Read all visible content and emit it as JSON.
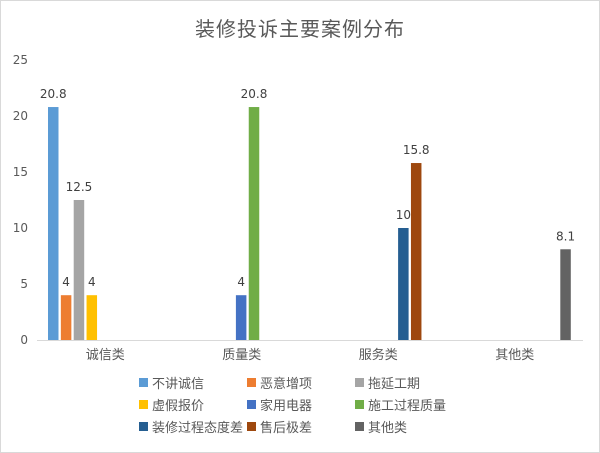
{
  "chart_data": {
    "type": "bar",
    "title": "装修投诉主要案例分布",
    "categories": [
      "诚信类",
      "质量类",
      "服务类",
      "其他类"
    ],
    "ylim": [
      0,
      25
    ],
    "yticks": [
      0,
      5,
      10,
      15,
      20,
      25
    ],
    "grid": false,
    "legend_position": "bottom",
    "series": [
      {
        "name": "不讲诚信",
        "color": "#5b9bd5",
        "values": [
          20.8,
          null,
          null,
          null
        ],
        "labels": [
          "20.8",
          null,
          null,
          null
        ]
      },
      {
        "name": "恶意增项",
        "color": "#ed7d31",
        "values": [
          4,
          null,
          null,
          null
        ],
        "labels": [
          "4",
          null,
          null,
          null
        ]
      },
      {
        "name": "拖延工期",
        "color": "#a5a5a5",
        "values": [
          12.5,
          null,
          null,
          null
        ],
        "labels": [
          "12.5",
          null,
          null,
          null
        ]
      },
      {
        "name": "虚假报价",
        "color": "#ffc000",
        "values": [
          4,
          null,
          null,
          null
        ],
        "labels": [
          "4",
          null,
          null,
          null
        ]
      },
      {
        "name": "家用电器",
        "color": "#4472c4",
        "values": [
          null,
          4,
          null,
          null
        ],
        "labels": [
          null,
          "4",
          null,
          null
        ]
      },
      {
        "name": "施工过程质量",
        "color": "#70ad47",
        "values": [
          null,
          20.8,
          null,
          null
        ],
        "labels": [
          null,
          "20.8",
          null,
          null
        ]
      },
      {
        "name": "装修过程态度差",
        "color": "#255e91",
        "values": [
          null,
          null,
          10,
          null
        ],
        "labels": [
          null,
          null,
          "10",
          null
        ]
      },
      {
        "name": "售后极差",
        "color": "#9e480e",
        "values": [
          null,
          null,
          15.8,
          null
        ],
        "labels": [
          null,
          null,
          "15.8",
          null
        ]
      },
      {
        "name": "其他类",
        "color": "#636363",
        "values": [
          null,
          null,
          null,
          8.1
        ],
        "labels": [
          null,
          null,
          null,
          "8.1"
        ]
      }
    ]
  }
}
